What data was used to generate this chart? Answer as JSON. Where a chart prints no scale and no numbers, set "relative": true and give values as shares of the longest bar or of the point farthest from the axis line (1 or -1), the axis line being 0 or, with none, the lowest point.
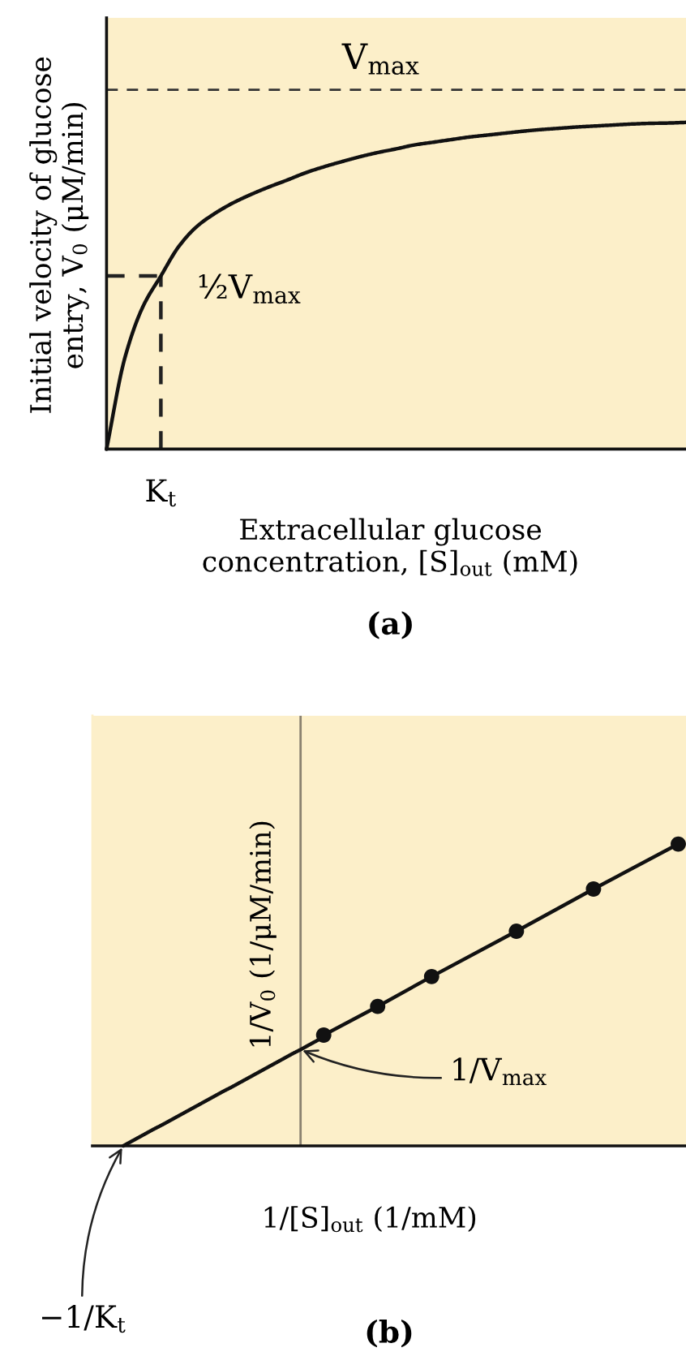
{
  "chart_data": [
    {
      "type": "line",
      "title": "(a)",
      "xlabel": "Extracellular glucose\nconcentration, [S]$_{out}$ (mM)",
      "ylabel": "Initial velocity of glucose\nentry, V$_{0}$ (μM/min)",
      "relative": true,
      "categories": [
        null,
        null,
        null,
        null,
        null,
        null,
        null,
        null,
        null,
        null,
        null,
        null,
        null,
        null,
        null,
        null,
        null,
        null,
        null,
        null,
        null,
        null,
        null,
        null,
        null,
        null,
        null,
        null,
        null,
        null,
        null,
        null,
        null
      ],
      "series": [
        {
          "values": [
            0,
            0.277,
            0.435,
            0.53,
            0.621,
            0.682,
            0.722,
            0.754,
            0.78,
            0.803,
            0.824,
            0.846,
            0.864,
            0.88,
            0.895,
            0.908,
            0.919,
            0.931,
            0.939,
            0.947,
            0.955,
            0.961,
            0.967,
            0.973,
            0.978,
            0.982,
            0.986,
            0.989,
            0.992,
            0.995,
            0.997,
            0.998,
            1
          ],
          "color": "#111111",
          "line_style": "solid"
        },
        {
          "values": [
            0.53,
            0.53,
            0.53,
            0.53,
            null,
            null,
            null,
            null,
            null,
            null,
            null,
            null,
            null,
            null,
            null,
            null,
            null,
            null,
            null,
            null,
            null,
            null,
            null,
            null,
            null,
            null,
            null,
            null,
            null,
            null,
            null,
            null,
            null
          ],
          "color": "#222222",
          "line_style": "dashed"
        }
      ],
      "ref_lines": [
        {
          "axis": "y",
          "value": 1.1,
          "label": "V$_{max}$",
          "color": "#333333",
          "line_style": "dashed"
        }
      ],
      "annotations": [
        "½V$_{max}$",
        "K$_{t}$"
      ]
    },
    {
      "type": "line",
      "title": "(b)",
      "xlabel": "1/[S]$_{out}$ (1/mM)",
      "ylabel": "1/V$_{0}$ (1/μM/min)",
      "relative": true,
      "categories": [
        null,
        null,
        null,
        null,
        null,
        null,
        null,
        null,
        null,
        null,
        null,
        null,
        null,
        null,
        null,
        null,
        null,
        null,
        null,
        null,
        null,
        null,
        null,
        null,
        null,
        null,
        null,
        null,
        null,
        null,
        null,
        null,
        null,
        null,
        null,
        null,
        null,
        null,
        null,
        null,
        null,
        null,
        null,
        null,
        null,
        null,
        null,
        null,
        null,
        null,
        null,
        null,
        null,
        null,
        null,
        null,
        null,
        null,
        null,
        null,
        null,
        null,
        null,
        null,
        null,
        null,
        null,
        null,
        null,
        null,
        null,
        null,
        null,
        null,
        null,
        null,
        null,
        null
      ],
      "series": [
        {
          "values": [
            null,
            null,
            null,
            null,
            0,
            0.014,
            0.028,
            0.042,
            0.056,
            0.069,
            0.083,
            0.097,
            0.111,
            0.125,
            0.139,
            0.153,
            0.167,
            0.181,
            0.194,
            0.208,
            0.222,
            0.236,
            0.25,
            0.264,
            0.278,
            0.292,
            0.306,
            0.319,
            0.333,
            0.347,
            0.361,
            null,
            null,
            null,
            null,
            null,
            null,
            null,
            null,
            null,
            null,
            null,
            null,
            null,
            null,
            null,
            null,
            null,
            null,
            null,
            null,
            null,
            null,
            null,
            null,
            null,
            null,
            null,
            null,
            null,
            null,
            null,
            null,
            null,
            null,
            null,
            null,
            null,
            null,
            null,
            null,
            null,
            null,
            null,
            null,
            null,
            null,
            null
          ],
          "color": "#111111",
          "line_style": "solid"
        },
        {
          "values": [
            null,
            null,
            null,
            null,
            null,
            null,
            null,
            null,
            null,
            null,
            null,
            null,
            null,
            null,
            null,
            null,
            null,
            null,
            null,
            null,
            null,
            null,
            null,
            null,
            null,
            null,
            null,
            null,
            null,
            null,
            0.367,
            null,
            null,
            null,
            null,
            null,
            null,
            0.462,
            null,
            null,
            null,
            null,
            null,
            null,
            0.561,
            null,
            null,
            null,
            null,
            null,
            null,
            null,
            null,
            null,
            null,
            0.711,
            null,
            null,
            null,
            null,
            null,
            null,
            null,
            null,
            null,
            0.851,
            null,
            null,
            null,
            null,
            null,
            null,
            null,
            null,
            null,
            null,
            1,
            null
          ],
          "color": "#111111",
          "line_style": "solid",
          "marker": "circle"
        }
      ],
      "annotations": [
        "1/V$_{max}$",
        "−1/K$_{t}$"
      ]
    }
  ]
}
